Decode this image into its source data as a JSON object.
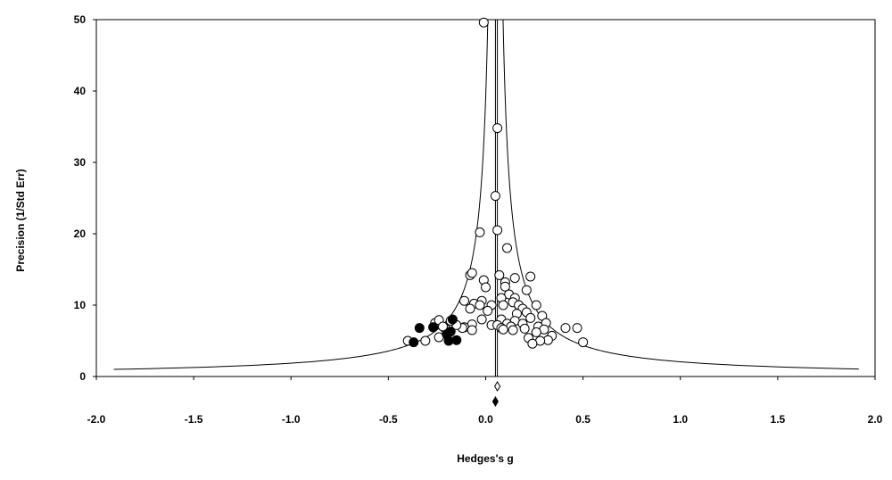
{
  "chart_data": {
    "type": "scatter",
    "subtype": "funnel-plot",
    "title": "",
    "xlabel": "Hedges's g",
    "ylabel": "Precision (1/Std Err)",
    "xlim": [
      -2.0,
      2.0
    ],
    "ylim": [
      0,
      50
    ],
    "x_ticks": [
      -2.0,
      -1.5,
      -1.0,
      -0.5,
      0.0,
      0.5,
      1.0,
      1.5,
      2.0
    ],
    "x_tick_labels": [
      "-2.0",
      "-1.5",
      "-1.0",
      "-0.5",
      "0.0",
      "0.5",
      "1.0",
      "1.5",
      "2.0"
    ],
    "y_ticks": [
      0,
      10,
      20,
      30,
      40,
      50
    ],
    "y_tick_labels": [
      "0",
      "10",
      "20",
      "30",
      "40",
      "50"
    ],
    "grid": false,
    "legend": "none",
    "combined_effect": 0.05,
    "adjusted_effect": 0.06,
    "colors": {
      "observed": "#ffffff",
      "imputed": "#000000",
      "stroke": "#000000"
    },
    "series": [
      {
        "name": "",
        "marker": "open-circle",
        "points": [
          [
            -0.01,
            49.6
          ],
          [
            0.06,
            34.8
          ],
          [
            0.05,
            25.3
          ],
          [
            0.06,
            20.5
          ],
          [
            -0.03,
            20.2
          ],
          [
            0.11,
            18.0
          ],
          [
            0.23,
            14.0
          ],
          [
            0.07,
            14.2
          ],
          [
            0.15,
            13.8
          ],
          [
            -0.08,
            14.2
          ],
          [
            -0.07,
            14.5
          ],
          [
            -0.01,
            13.5
          ],
          [
            0.1,
            13.2
          ],
          [
            0.0,
            12.5
          ],
          [
            0.1,
            12.6
          ],
          [
            0.21,
            12.1
          ],
          [
            0.12,
            11.5
          ],
          [
            0.15,
            11.0
          ],
          [
            0.08,
            11.0
          ],
          [
            -0.11,
            10.6
          ],
          [
            -0.02,
            10.6
          ],
          [
            0.14,
            10.4
          ],
          [
            -0.06,
            10.2
          ],
          [
            -0.03,
            10.0
          ],
          [
            0.03,
            10.0
          ],
          [
            0.09,
            10.0
          ],
          [
            0.17,
            10.0
          ],
          [
            0.26,
            10.0
          ],
          [
            0.19,
            9.5
          ],
          [
            -0.08,
            9.5
          ],
          [
            0.01,
            9.2
          ],
          [
            0.21,
            9.0
          ],
          [
            0.16,
            8.8
          ],
          [
            0.29,
            8.5
          ],
          [
            0.23,
            8.2
          ],
          [
            -0.02,
            8.0
          ],
          [
            0.08,
            8.0
          ],
          [
            0.15,
            7.8
          ],
          [
            0.31,
            7.5
          ],
          [
            0.19,
            7.4
          ],
          [
            0.11,
            7.4
          ],
          [
            -0.07,
            7.3
          ],
          [
            0.03,
            7.2
          ],
          [
            0.06,
            7.2
          ],
          [
            0.13,
            7.0
          ],
          [
            0.27,
            7.0
          ],
          [
            -0.11,
            6.9
          ],
          [
            -0.21,
            6.8
          ],
          [
            0.08,
            6.8
          ],
          [
            0.2,
            6.7
          ],
          [
            0.3,
            6.6
          ],
          [
            0.09,
            6.6
          ],
          [
            -0.07,
            6.5
          ],
          [
            -0.12,
            6.8
          ],
          [
            0.14,
            6.5
          ],
          [
            0.26,
            6.2
          ],
          [
            0.34,
            5.7
          ],
          [
            -0.24,
            5.5
          ],
          [
            0.22,
            5.4
          ],
          [
            -0.31,
            5.0
          ],
          [
            0.32,
            5.1
          ],
          [
            0.28,
            5.0
          ],
          [
            0.24,
            4.6
          ],
          [
            0.5,
            4.8
          ],
          [
            -0.4,
            5.0
          ],
          [
            0.41,
            6.8
          ],
          [
            0.47,
            6.8
          ],
          [
            -0.15,
            7.2
          ],
          [
            -0.26,
            7.5
          ],
          [
            -0.24,
            7.9
          ],
          [
            -0.22,
            7.0
          ],
          [
            -0.18,
            7.8
          ]
        ]
      },
      {
        "name": "",
        "marker": "filled-circle",
        "points": [
          [
            -0.34,
            6.8
          ],
          [
            -0.27,
            6.9
          ],
          [
            -0.17,
            8.0
          ],
          [
            -0.18,
            6.3
          ],
          [
            -0.2,
            5.9
          ],
          [
            -0.19,
            5.0
          ],
          [
            -0.15,
            5.1
          ],
          [
            -0.37,
            4.8
          ]
        ]
      }
    ]
  }
}
